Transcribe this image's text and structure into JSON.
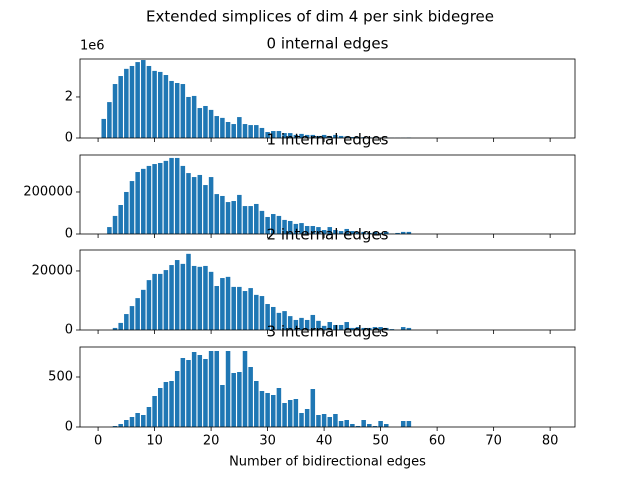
{
  "title": "Extended simplices of dim 4 per sink bidegree",
  "chart_data": [
    {
      "type": "bar",
      "title": "0 internal edges",
      "color": "#1f77b4",
      "y_offset_label": "1e6",
      "x": [
        1,
        2,
        3,
        4,
        5,
        6,
        7,
        8,
        9,
        10,
        11,
        12,
        13,
        14,
        15,
        16,
        17,
        18,
        19,
        20,
        21,
        22,
        23,
        24,
        25,
        26,
        27,
        28,
        29,
        30,
        31,
        32,
        33,
        34,
        35,
        36,
        37,
        38,
        39,
        40,
        41,
        42,
        43,
        44,
        45,
        46,
        47,
        48,
        49,
        50,
        51,
        52,
        53,
        54,
        55
      ],
      "values": [
        0.93,
        1.75,
        2.63,
        3.02,
        3.37,
        3.51,
        3.7,
        3.8,
        3.51,
        3.27,
        3.22,
        3.07,
        2.78,
        2.68,
        2.63,
        2.0,
        2.05,
        1.46,
        1.56,
        1.37,
        1.07,
        0.98,
        0.78,
        0.68,
        1.02,
        0.68,
        0.63,
        0.63,
        0.49,
        0.29,
        0.34,
        0.34,
        0.24,
        0.24,
        0.15,
        0.2,
        0.15,
        0.15,
        0.1,
        0.15,
        0.1,
        0.15,
        0.1,
        0.08,
        0.05,
        0.05,
        0.04,
        0.03,
        0.03,
        0.02,
        0.02,
        0.01,
        0.01,
        0.01,
        0.02
      ],
      "xlim": [
        -3.2,
        84.4
      ],
      "xticks": [
        0,
        10,
        20,
        30,
        40,
        50,
        60,
        70,
        80
      ],
      "ylim": [
        0,
        3.85
      ],
      "yticks": [
        0,
        2
      ]
    },
    {
      "type": "bar",
      "title": "1 internal edges",
      "color": "#1f77b4",
      "x": [
        2,
        3,
        4,
        5,
        6,
        7,
        8,
        9,
        10,
        11,
        12,
        13,
        14,
        15,
        16,
        17,
        18,
        19,
        20,
        21,
        22,
        23,
        24,
        25,
        26,
        27,
        28,
        29,
        30,
        31,
        32,
        33,
        34,
        35,
        36,
        37,
        38,
        39,
        40,
        41,
        42,
        43,
        44,
        45,
        46,
        47,
        48,
        49,
        50,
        51,
        52,
        53,
        54,
        55
      ],
      "values": [
        33000,
        86000,
        138000,
        200000,
        252000,
        295000,
        310000,
        324000,
        333000,
        338000,
        348000,
        362000,
        362000,
        324000,
        290000,
        271000,
        281000,
        233000,
        271000,
        190000,
        181000,
        152000,
        157000,
        186000,
        133000,
        133000,
        143000,
        110000,
        81000,
        95000,
        86000,
        67000,
        62000,
        48000,
        52000,
        38000,
        38000,
        33000,
        19000,
        33000,
        19000,
        14000,
        24000,
        14000,
        10000,
        10000,
        5000,
        10000,
        5000,
        10000,
        2000,
        5000,
        10000,
        10000
      ],
      "xlim": [
        -3.2,
        84.4
      ],
      "xticks": [
        0,
        10,
        20,
        30,
        40,
        50,
        60,
        70,
        80
      ],
      "ylim": [
        0,
        376000
      ],
      "yticks": [
        0,
        200000
      ]
    },
    {
      "type": "bar",
      "title": "2 internal edges",
      "color": "#1f77b4",
      "x": [
        3,
        4,
        5,
        6,
        7,
        8,
        9,
        10,
        11,
        12,
        13,
        14,
        15,
        16,
        17,
        18,
        19,
        20,
        21,
        22,
        23,
        24,
        25,
        26,
        27,
        28,
        29,
        30,
        31,
        32,
        33,
        34,
        35,
        36,
        37,
        38,
        39,
        40,
        41,
        42,
        43,
        44,
        45,
        46,
        47,
        48,
        49,
        50,
        51,
        52,
        53,
        54,
        55
      ],
      "values": [
        700,
        2400,
        5400,
        8100,
        10800,
        13600,
        16900,
        19000,
        19000,
        20300,
        22000,
        23700,
        22400,
        25800,
        21700,
        21400,
        21700,
        19700,
        14900,
        17600,
        18000,
        14600,
        14600,
        13200,
        14200,
        11900,
        11500,
        8800,
        7800,
        5800,
        6400,
        4700,
        3400,
        4100,
        3400,
        5100,
        3100,
        1400,
        2700,
        1700,
        1700,
        2700,
        700,
        1000,
        700,
        700,
        1000,
        1000,
        700,
        300,
        0,
        1000,
        700
      ],
      "xlim": [
        -3.2,
        84.4
      ],
      "xticks": [
        0,
        10,
        20,
        30,
        40,
        50,
        60,
        70,
        80
      ],
      "ylim": [
        0,
        27100
      ],
      "yticks": [
        0,
        20000
      ]
    },
    {
      "type": "bar",
      "title": "3 internal edges",
      "color": "#1f77b4",
      "xlabel": "Number of bidirectional edges",
      "x": [
        3,
        4,
        5,
        6,
        7,
        8,
        9,
        10,
        11,
        12,
        13,
        14,
        15,
        16,
        17,
        18,
        19,
        20,
        21,
        22,
        23,
        24,
        25,
        26,
        27,
        28,
        29,
        30,
        31,
        32,
        33,
        34,
        35,
        36,
        37,
        38,
        39,
        40,
        41,
        42,
        43,
        44,
        45,
        46,
        47,
        48,
        49,
        50,
        51,
        52,
        53,
        54,
        55
      ],
      "values": [
        10,
        30,
        70,
        100,
        140,
        120,
        200,
        310,
        390,
        450,
        460,
        560,
        690,
        670,
        750,
        720,
        680,
        760,
        760,
        420,
        760,
        540,
        550,
        760,
        600,
        460,
        360,
        340,
        320,
        390,
        240,
        270,
        280,
        140,
        180,
        380,
        120,
        130,
        100,
        130,
        60,
        70,
        30,
        10,
        70,
        30,
        10,
        60,
        30,
        0,
        0,
        60,
        60
      ],
      "xlim": [
        -3.2,
        84.4
      ],
      "xticks": [
        0,
        10,
        20,
        30,
        40,
        50,
        60,
        70,
        80
      ],
      "ylim": [
        0,
        800
      ],
      "yticks": [
        0,
        500
      ]
    }
  ]
}
